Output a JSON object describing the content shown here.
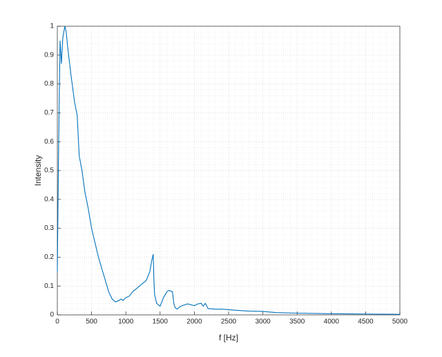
{
  "chart_data": {
    "type": "line",
    "xlabel": "f [Hz]",
    "ylabel": "Intensity",
    "x": [
      0,
      20,
      40,
      60,
      80,
      110,
      130,
      150,
      200,
      250,
      290,
      320,
      360,
      400,
      450,
      500,
      550,
      600,
      650,
      700,
      750,
      800,
      850,
      900,
      930,
      960,
      1000,
      1050,
      1100,
      1200,
      1300,
      1350,
      1380,
      1400,
      1410,
      1420,
      1450,
      1500,
      1550,
      1600,
      1630,
      1680,
      1700,
      1720,
      1750,
      1800,
      1900,
      2000,
      2050,
      2100,
      2130,
      2160,
      2200,
      2300,
      2400,
      2500,
      2600,
      2800,
      3000,
      3200,
      3500,
      4000,
      4500,
      5000
    ],
    "series": [
      {
        "name": "Intensity",
        "color": "#0072bd",
        "values": [
          0.15,
          0.6,
          0.95,
          0.87,
          0.96,
          1.0,
          0.98,
          0.93,
          0.83,
          0.74,
          0.69,
          0.55,
          0.5,
          0.43,
          0.37,
          0.3,
          0.25,
          0.2,
          0.16,
          0.12,
          0.08,
          0.055,
          0.045,
          0.05,
          0.055,
          0.05,
          0.06,
          0.065,
          0.08,
          0.1,
          0.12,
          0.15,
          0.19,
          0.21,
          0.12,
          0.07,
          0.04,
          0.03,
          0.06,
          0.08,
          0.085,
          0.08,
          0.04,
          0.025,
          0.02,
          0.03,
          0.038,
          0.032,
          0.038,
          0.04,
          0.03,
          0.04,
          0.022,
          0.02,
          0.02,
          0.018,
          0.016,
          0.013,
          0.012,
          0.008,
          0.006,
          0.004,
          0.003,
          0.002
        ]
      }
    ],
    "xlim": [
      0,
      5000
    ],
    "xticks": [
      0,
      500,
      1000,
      1500,
      2000,
      2500,
      3000,
      3500,
      4000,
      4500,
      5000
    ],
    "ylim": [
      0,
      1
    ],
    "yticks": [
      0,
      0.1,
      0.2,
      0.3,
      0.4,
      0.5,
      0.6,
      0.7,
      0.8,
      0.9,
      1
    ],
    "grid": true,
    "minor_grid": true
  }
}
